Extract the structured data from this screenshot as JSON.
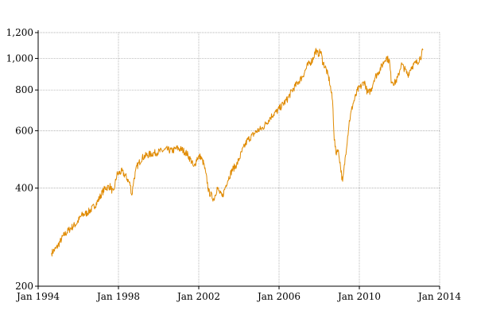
{
  "chart_data": {
    "type": "line",
    "title": "",
    "xlabel": "",
    "ylabel": "",
    "y_scale": "log",
    "grid": true,
    "legend": "none",
    "xlim": [
      "1994-01",
      "2014-01"
    ],
    "ylim": [
      200,
      1200
    ],
    "x_ticks": [
      {
        "value": "1994-01",
        "label": "Jan 1994"
      },
      {
        "value": "1998-01",
        "label": "Jan 1998"
      },
      {
        "value": "2002-01",
        "label": "Jan 2002"
      },
      {
        "value": "2006-01",
        "label": "Jan 2006"
      },
      {
        "value": "2010-01",
        "label": "Jan 2010"
      },
      {
        "value": "2014-01",
        "label": "Jan 2014"
      }
    ],
    "y_ticks": [
      {
        "value": 200,
        "label": "200"
      },
      {
        "value": 400,
        "label": "400"
      },
      {
        "value": 600,
        "label": "600"
      },
      {
        "value": 800,
        "label": "800"
      },
      {
        "value": 1000,
        "label": "1,000"
      },
      {
        "value": 1200,
        "label": "1,200"
      }
    ],
    "series": [
      {
        "color": "#e08a00",
        "points": [
          [
            "1994-09",
            253
          ],
          [
            "1994-12",
            262
          ],
          [
            "1995-04",
            285
          ],
          [
            "1995-08",
            300
          ],
          [
            "1995-12",
            312
          ],
          [
            "1996-03",
            330
          ],
          [
            "1996-06",
            335
          ],
          [
            "1996-09",
            345
          ],
          [
            "1996-12",
            360
          ],
          [
            "1997-03",
            385
          ],
          [
            "1997-05",
            400
          ],
          [
            "1997-08",
            405
          ],
          [
            "1997-10",
            385
          ],
          [
            "1997-12",
            440
          ],
          [
            "1998-03",
            450
          ],
          [
            "1998-06",
            430
          ],
          [
            "1998-08",
            410
          ],
          [
            "1998-09",
            380
          ],
          [
            "1998-10",
            420
          ],
          [
            "1998-12",
            465
          ],
          [
            "1999-03",
            495
          ],
          [
            "1999-06",
            505
          ],
          [
            "1999-09",
            510
          ],
          [
            "1999-12",
            515
          ],
          [
            "2000-03",
            520
          ],
          [
            "2000-06",
            525
          ],
          [
            "2000-09",
            520
          ],
          [
            "2000-12",
            530
          ],
          [
            "2001-03",
            525
          ],
          [
            "2001-06",
            510
          ],
          [
            "2001-09",
            480
          ],
          [
            "2001-10",
            460
          ],
          [
            "2001-12",
            495
          ],
          [
            "2002-02",
            500
          ],
          [
            "2002-04",
            475
          ],
          [
            "2002-06",
            420
          ],
          [
            "2002-07",
            390
          ],
          [
            "2002-10",
            370
          ],
          [
            "2002-12",
            400
          ],
          [
            "2003-03",
            375
          ],
          [
            "2003-06",
            420
          ],
          [
            "2003-09",
            455
          ],
          [
            "2003-12",
            475
          ],
          [
            "2004-03",
            520
          ],
          [
            "2004-06",
            560
          ],
          [
            "2004-09",
            580
          ],
          [
            "2004-12",
            600
          ],
          [
            "2005-03",
            610
          ],
          [
            "2005-06",
            640
          ],
          [
            "2005-09",
            670
          ],
          [
            "2005-12",
            690
          ],
          [
            "2006-03",
            720
          ],
          [
            "2006-06",
            750
          ],
          [
            "2006-09",
            800
          ],
          [
            "2006-12",
            840
          ],
          [
            "2007-03",
            880
          ],
          [
            "2007-06",
            950
          ],
          [
            "2007-09",
            990
          ],
          [
            "2007-11",
            1060
          ],
          [
            "2007-12",
            1030
          ],
          [
            "2008-02",
            1050
          ],
          [
            "2008-03",
            980
          ],
          [
            "2008-05",
            930
          ],
          [
            "2008-07",
            860
          ],
          [
            "2008-08",
            800
          ],
          [
            "2008-09",
            740
          ],
          [
            "2008-10",
            570
          ],
          [
            "2008-11",
            510
          ],
          [
            "2008-12",
            530
          ],
          [
            "2009-01",
            500
          ],
          [
            "2009-03",
            415
          ],
          [
            "2009-05",
            520
          ],
          [
            "2009-07",
            640
          ],
          [
            "2009-09",
            720
          ],
          [
            "2009-11",
            770
          ],
          [
            "2009-12",
            800
          ],
          [
            "2010-02",
            820
          ],
          [
            "2010-04",
            850
          ],
          [
            "2010-06",
            780
          ],
          [
            "2010-08",
            800
          ],
          [
            "2010-10",
            870
          ],
          [
            "2010-12",
            900
          ],
          [
            "2011-03",
            960
          ],
          [
            "2011-05",
            1010
          ],
          [
            "2011-07",
            980
          ],
          [
            "2011-08",
            860
          ],
          [
            "2011-10",
            840
          ],
          [
            "2011-12",
            870
          ],
          [
            "2012-02",
            960
          ],
          [
            "2012-04",
            930
          ],
          [
            "2012-06",
            890
          ],
          [
            "2012-08",
            940
          ],
          [
            "2012-10",
            960
          ],
          [
            "2012-12",
            980
          ],
          [
            "2013-02",
            1020
          ],
          [
            "2013-03",
            1060
          ]
        ]
      }
    ]
  }
}
